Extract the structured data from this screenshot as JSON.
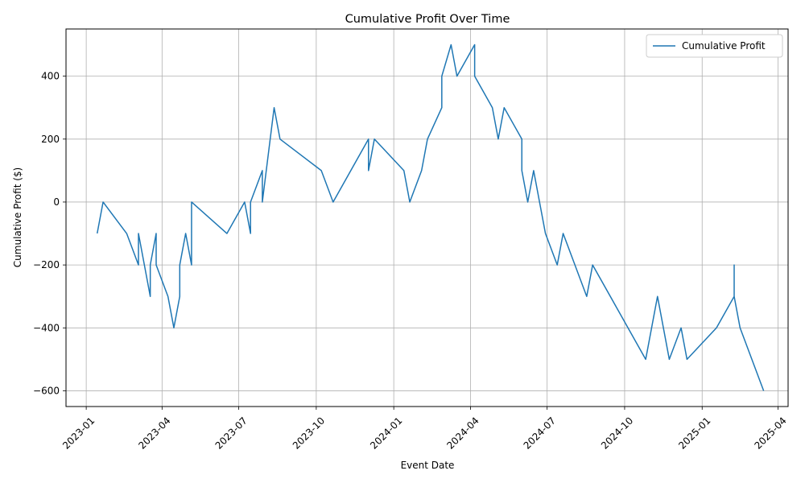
{
  "chart_data": {
    "type": "line",
    "title": "Cumulative Profit Over Time",
    "xlabel": "Event Date",
    "ylabel": "Cumulative Profit ($)",
    "ylim": [
      -650,
      550
    ],
    "xlim": [
      "2022-12-08",
      "2025-04-13"
    ],
    "grid": true,
    "legend_position": "top-right",
    "line_color": "#1f77b4",
    "x_ticks": [
      "2023-01-01",
      "2023-04-01",
      "2023-07-01",
      "2023-10-01",
      "2024-01-01",
      "2024-04-01",
      "2024-07-01",
      "2024-10-01",
      "2025-01-01",
      "2025-04-01"
    ],
    "x_tick_labels": [
      "2023-01",
      "2023-04",
      "2023-07",
      "2023-10",
      "2024-01",
      "2024-04",
      "2024-07",
      "2024-10",
      "2025-01",
      "2025-04"
    ],
    "y_ticks": [
      -600,
      -400,
      -200,
      0,
      200,
      400
    ],
    "y_tick_labels": [
      "−600",
      "−400",
      "−200",
      "0",
      "200",
      "400"
    ],
    "series": [
      {
        "name": "Cumulative Profit",
        "points": [
          [
            "2023-01-14",
            -100
          ],
          [
            "2023-01-21",
            0
          ],
          [
            "2023-02-18",
            -100
          ],
          [
            "2023-03-04",
            -200
          ],
          [
            "2023-03-04",
            -100
          ],
          [
            "2023-03-18",
            -300
          ],
          [
            "2023-03-18",
            -200
          ],
          [
            "2023-03-25",
            -100
          ],
          [
            "2023-03-25",
            -200
          ],
          [
            "2023-04-08",
            -300
          ],
          [
            "2023-04-15",
            -400
          ],
          [
            "2023-04-22",
            -300
          ],
          [
            "2023-04-22",
            -200
          ],
          [
            "2023-04-29",
            -100
          ],
          [
            "2023-05-06",
            -200
          ],
          [
            "2023-05-06",
            0
          ],
          [
            "2023-06-17",
            -100
          ],
          [
            "2023-07-08",
            0
          ],
          [
            "2023-07-15",
            -100
          ],
          [
            "2023-07-15",
            0
          ],
          [
            "2023-07-29",
            100
          ],
          [
            "2023-07-29",
            0
          ],
          [
            "2023-08-12",
            300
          ],
          [
            "2023-08-19",
            200
          ],
          [
            "2023-10-07",
            100
          ],
          [
            "2023-10-21",
            0
          ],
          [
            "2023-12-02",
            200
          ],
          [
            "2023-12-02",
            100
          ],
          [
            "2023-12-09",
            200
          ],
          [
            "2024-01-13",
            100
          ],
          [
            "2024-01-20",
            0
          ],
          [
            "2024-02-03",
            100
          ],
          [
            "2024-02-10",
            200
          ],
          [
            "2024-02-27",
            300
          ],
          [
            "2024-02-27",
            400
          ],
          [
            "2024-03-09",
            500
          ],
          [
            "2024-03-16",
            400
          ],
          [
            "2024-04-06",
            500
          ],
          [
            "2024-04-06",
            400
          ],
          [
            "2024-04-27",
            300
          ],
          [
            "2024-05-04",
            200
          ],
          [
            "2024-05-11",
            300
          ],
          [
            "2024-06-01",
            200
          ],
          [
            "2024-06-01",
            100
          ],
          [
            "2024-06-08",
            0
          ],
          [
            "2024-06-15",
            100
          ],
          [
            "2024-06-29",
            -100
          ],
          [
            "2024-07-13",
            -200
          ],
          [
            "2024-07-20",
            -100
          ],
          [
            "2024-08-17",
            -300
          ],
          [
            "2024-08-24",
            -200
          ],
          [
            "2024-10-26",
            -500
          ],
          [
            "2024-11-09",
            -300
          ],
          [
            "2024-11-23",
            -500
          ],
          [
            "2024-12-07",
            -400
          ],
          [
            "2024-12-14",
            -500
          ],
          [
            "2025-01-18",
            -400
          ],
          [
            "2025-02-08",
            -300
          ],
          [
            "2025-02-08",
            -200
          ],
          [
            "2025-02-08",
            -300
          ],
          [
            "2025-02-15",
            -400
          ],
          [
            "2025-03-15",
            -600
          ]
        ]
      }
    ]
  }
}
